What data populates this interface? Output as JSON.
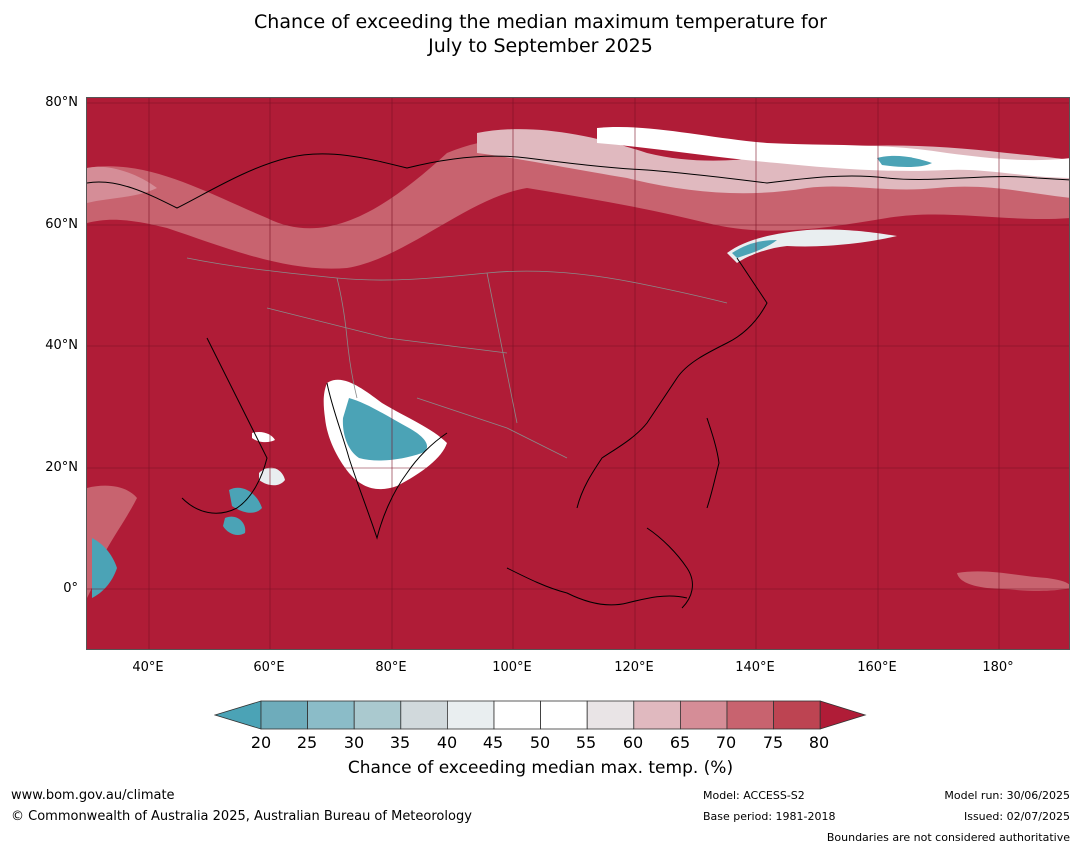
{
  "title_line1": "Chance of exceeding the median maximum temperature for",
  "title_line2": "July to September 2025",
  "latitude_labels": [
    "80°N",
    "60°N",
    "40°N",
    "20°N",
    "0°"
  ],
  "longitude_labels": [
    "40°E",
    "60°E",
    "80°E",
    "100°E",
    "120°E",
    "140°E",
    "160°E",
    "180°"
  ],
  "colorbar": {
    "ticks": [
      "20",
      "25",
      "30",
      "35",
      "40",
      "45",
      "50",
      "55",
      "60",
      "65",
      "70",
      "75",
      "80"
    ],
    "colors": [
      "#6eacbb",
      "#8bbcc8",
      "#aac9cf",
      "#d1d9dc",
      "#e9eef0",
      "#ffffff",
      "#ffffff",
      "#e9e4e6",
      "#e0b9bf",
      "#d58d97",
      "#c8636f",
      "#bd4452"
    ],
    "below_color": "#4ba3b6",
    "above_color": "#b01c37",
    "title": "Chance of exceeding median max. temp. (%)"
  },
  "footer": {
    "website": "www.bom.gov.au/climate",
    "copyright": "© Commonwealth of Australia 2025, Australian Bureau of Meteorology",
    "model": "Model: ACCESS-S2",
    "base_period": "Base period: 1981-2018",
    "model_run": "Model run: 30/06/2025",
    "issued": "Issued: 02/07/2025",
    "disclaimer": "Boundaries are not considered authoritative"
  },
  "map": {
    "dominant_category": "80",
    "background_color": "#b01c37"
  }
}
